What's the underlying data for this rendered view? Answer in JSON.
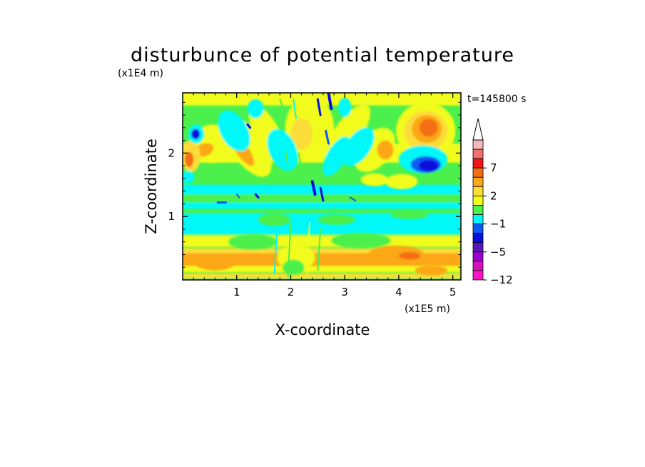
{
  "chart_data": {
    "type": "heatmap",
    "title": "disturbunce of potential temperature",
    "xlabel": "X-coordinate",
    "ylabel": "Z-coordinate",
    "x_scale_label": "(x1E5 m)",
    "y_scale_label": "(x1E4 m)",
    "time_label": "t=145800 s",
    "xlim": [
      0,
      5.15
    ],
    "ylim": [
      0,
      2.95
    ],
    "x_ticks": [
      "1",
      "2",
      "3",
      "4",
      "5"
    ],
    "y_ticks": [
      "1",
      "2"
    ],
    "colorbar": {
      "tick_labels": [
        "7",
        "2",
        "−1",
        "−5",
        "−12"
      ],
      "extend_top": true,
      "levels_colors": [
        {
          "value": 9,
          "color": "#f5b8b8"
        },
        {
          "value": 8,
          "color": "#f07070"
        },
        {
          "value": 7,
          "color": "#ee1818"
        },
        {
          "value": 5,
          "color": "#f46e14"
        },
        {
          "value": 3,
          "color": "#fca818"
        },
        {
          "value": 2,
          "color": "#fcdc38"
        },
        {
          "value": 1,
          "color": "#f2fc1c"
        },
        {
          "value": 0,
          "color": "#4cf04c"
        },
        {
          "value": -1,
          "color": "#00f8f8"
        },
        {
          "value": -2,
          "color": "#0c5cf4"
        },
        {
          "value": -3,
          "color": "#0810dc"
        },
        {
          "value": -5,
          "color": "#5818b8"
        },
        {
          "value": -7,
          "color": "#9c00d0"
        },
        {
          "value": -9,
          "color": "#d810bc"
        },
        {
          "value": -12,
          "color": "#fc14c4"
        }
      ]
    }
  }
}
